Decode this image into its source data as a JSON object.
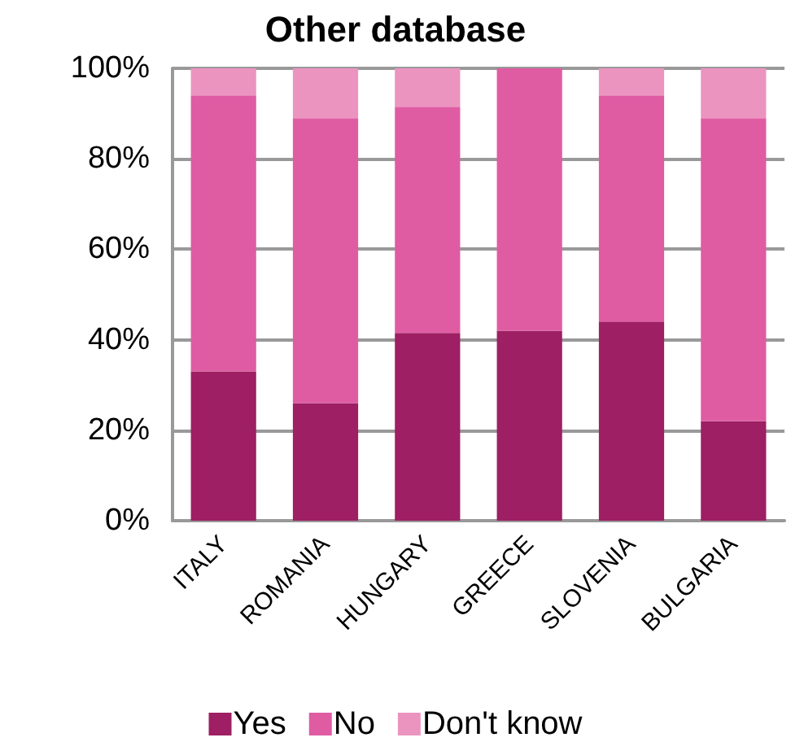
{
  "chart_data": {
    "type": "bar",
    "title": "Other database",
    "stacked": true,
    "categories": [
      "ITALY",
      "ROMANIA",
      "HUNGARY",
      "GREECE",
      "SLOVENIA",
      "BULGARIA"
    ],
    "series": [
      {
        "name": "Yes",
        "color": "#9e1f63",
        "values": [
          33,
          26,
          41.5,
          42,
          44,
          22
        ]
      },
      {
        "name": "No",
        "color": "#df5ca3",
        "values": [
          61,
          63,
          50,
          58,
          50,
          67
        ]
      },
      {
        "name": "Don't know",
        "color": "#eb94c0",
        "values": [
          6,
          11,
          8.5,
          0,
          6,
          11
        ]
      }
    ],
    "ylim": [
      0,
      100
    ],
    "yticks": [
      {
        "value": 0,
        "label": "0%"
      },
      {
        "value": 20,
        "label": "20%"
      },
      {
        "value": 40,
        "label": "40%"
      },
      {
        "value": 60,
        "label": "60%"
      },
      {
        "value": 80,
        "label": "80%"
      },
      {
        "value": 100,
        "label": "100%"
      }
    ],
    "grid": "y",
    "legend": "bottom"
  }
}
